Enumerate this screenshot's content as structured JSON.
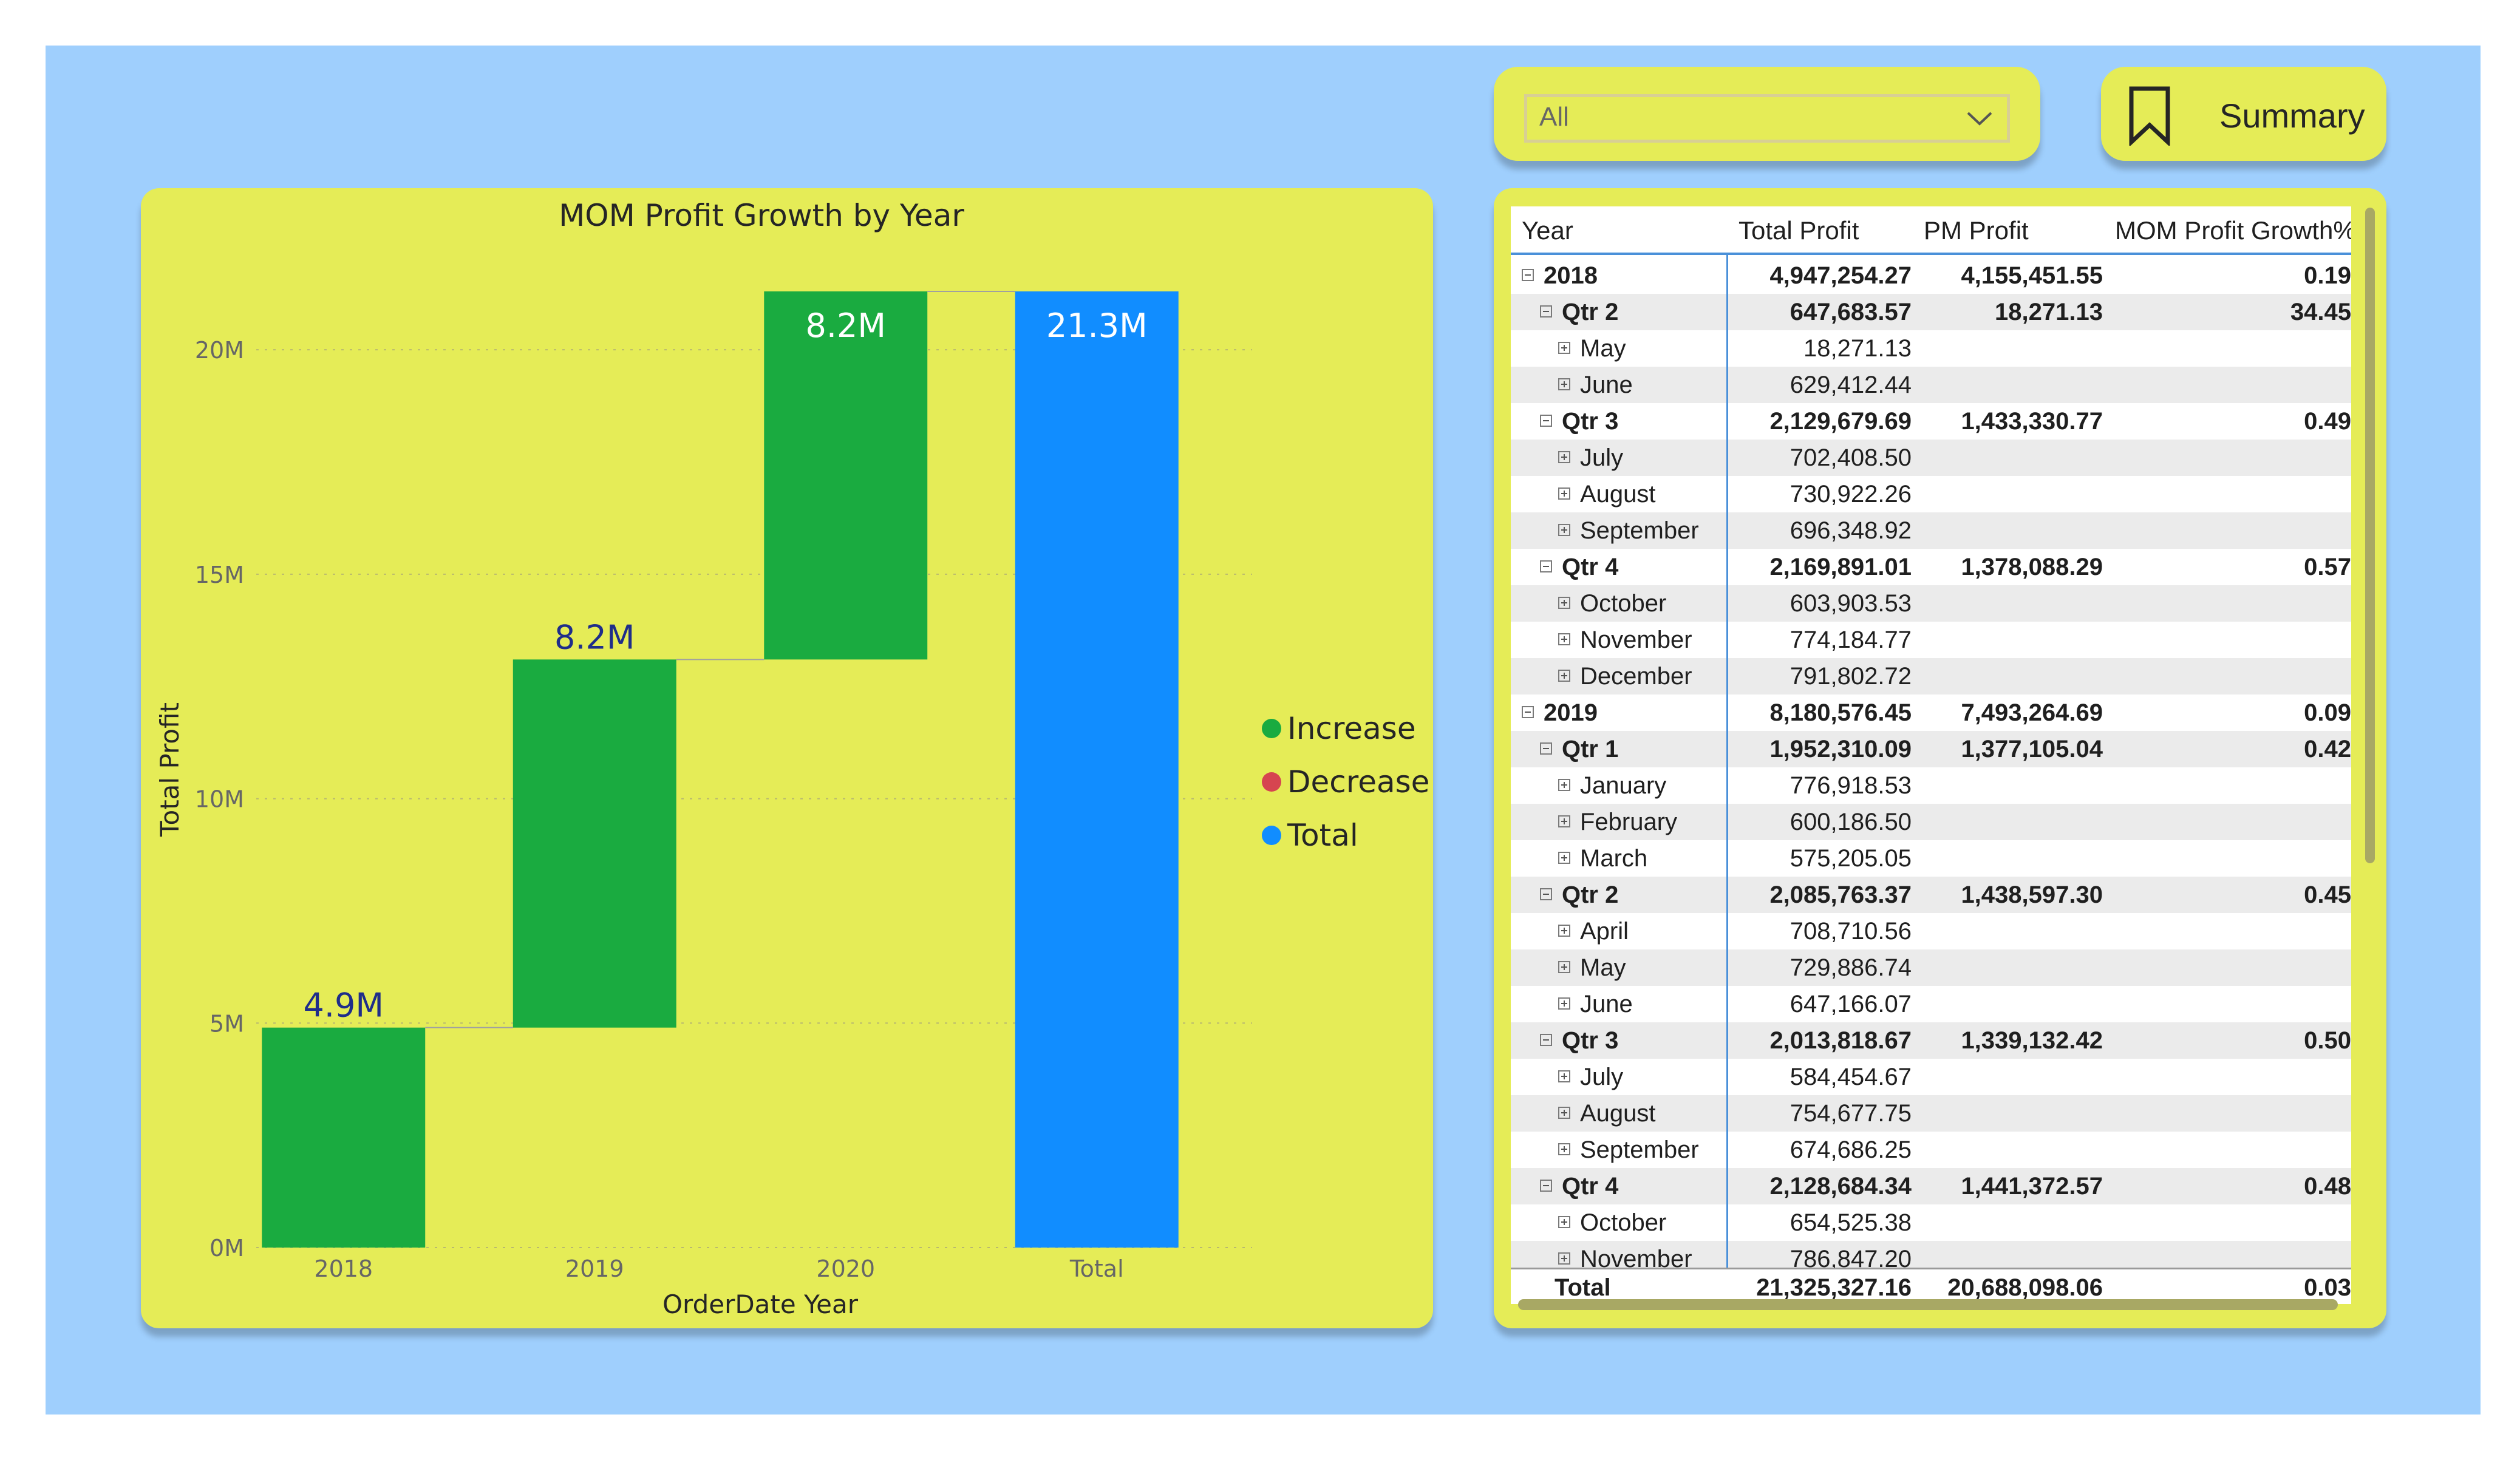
{
  "slicer": {
    "value": "All"
  },
  "summary_button": {
    "label": "Summary"
  },
  "chart_data": {
    "type": "waterfall",
    "title": "MOM Profit Growth by Year",
    "xlabel": "OrderDate Year",
    "ylabel": "Total Profit",
    "categories": [
      "2018",
      "2019",
      "2020",
      "Total"
    ],
    "values": [
      4.9,
      8.2,
      8.2,
      21.3
    ],
    "kinds": [
      "increase",
      "increase",
      "increase",
      "total"
    ],
    "data_labels": [
      "4.9M",
      "8.2M",
      "8.2M",
      "21.3M"
    ],
    "units": "M",
    "ylim": [
      0,
      21.3
    ],
    "yticks": [
      0,
      5,
      10,
      15,
      20
    ],
    "ytick_labels": [
      "0M",
      "5M",
      "10M",
      "15M",
      "20M"
    ],
    "grid": true,
    "legend": {
      "position": "right",
      "entries": [
        {
          "label": "Increase",
          "color": "#1aab40"
        },
        {
          "label": "Decrease",
          "color": "#d64550"
        },
        {
          "label": "Total",
          "color": "#118dff"
        }
      ]
    },
    "colors": {
      "increase": "#1aab40",
      "decrease": "#d64550",
      "total": "#118dff",
      "label": "#1f2d8a"
    }
  },
  "table": {
    "headers": [
      "Year",
      "Total Profit",
      "PM Profit",
      "MOM Profit Growth%"
    ],
    "rows": [
      {
        "level": 0,
        "icon": "minus",
        "label": "2018",
        "total": "4,947,254.27",
        "pm": "4,155,451.55",
        "growth": "0.19",
        "bold": true
      },
      {
        "level": 1,
        "icon": "minus",
        "label": "Qtr 2",
        "total": "647,683.57",
        "pm": "18,271.13",
        "growth": "34.45",
        "bold": true
      },
      {
        "level": 2,
        "icon": "plus",
        "label": "May",
        "total": "18,271.13",
        "pm": "",
        "growth": ""
      },
      {
        "level": 2,
        "icon": "plus",
        "label": "June",
        "total": "629,412.44",
        "pm": "",
        "growth": ""
      },
      {
        "level": 1,
        "icon": "minus",
        "label": "Qtr 3",
        "total": "2,129,679.69",
        "pm": "1,433,330.77",
        "growth": "0.49",
        "bold": true
      },
      {
        "level": 2,
        "icon": "plus",
        "label": "July",
        "total": "702,408.50",
        "pm": "",
        "growth": ""
      },
      {
        "level": 2,
        "icon": "plus",
        "label": "August",
        "total": "730,922.26",
        "pm": "",
        "growth": ""
      },
      {
        "level": 2,
        "icon": "plus",
        "label": "September",
        "total": "696,348.92",
        "pm": "",
        "growth": ""
      },
      {
        "level": 1,
        "icon": "minus",
        "label": "Qtr 4",
        "total": "2,169,891.01",
        "pm": "1,378,088.29",
        "growth": "0.57",
        "bold": true
      },
      {
        "level": 2,
        "icon": "plus",
        "label": "October",
        "total": "603,903.53",
        "pm": "",
        "growth": ""
      },
      {
        "level": 2,
        "icon": "plus",
        "label": "November",
        "total": "774,184.77",
        "pm": "",
        "growth": ""
      },
      {
        "level": 2,
        "icon": "plus",
        "label": "December",
        "total": "791,802.72",
        "pm": "",
        "growth": ""
      },
      {
        "level": 0,
        "icon": "minus",
        "label": "2019",
        "total": "8,180,576.45",
        "pm": "7,493,264.69",
        "growth": "0.09",
        "bold": true
      },
      {
        "level": 1,
        "icon": "minus",
        "label": "Qtr 1",
        "total": "1,952,310.09",
        "pm": "1,377,105.04",
        "growth": "0.42",
        "bold": true
      },
      {
        "level": 2,
        "icon": "plus",
        "label": "January",
        "total": "776,918.53",
        "pm": "",
        "growth": ""
      },
      {
        "level": 2,
        "icon": "plus",
        "label": "February",
        "total": "600,186.50",
        "pm": "",
        "growth": ""
      },
      {
        "level": 2,
        "icon": "plus",
        "label": "March",
        "total": "575,205.05",
        "pm": "",
        "growth": ""
      },
      {
        "level": 1,
        "icon": "minus",
        "label": "Qtr 2",
        "total": "2,085,763.37",
        "pm": "1,438,597.30",
        "growth": "0.45",
        "bold": true
      },
      {
        "level": 2,
        "icon": "plus",
        "label": "April",
        "total": "708,710.56",
        "pm": "",
        "growth": ""
      },
      {
        "level": 2,
        "icon": "plus",
        "label": "May",
        "total": "729,886.74",
        "pm": "",
        "growth": ""
      },
      {
        "level": 2,
        "icon": "plus",
        "label": "June",
        "total": "647,166.07",
        "pm": "",
        "growth": ""
      },
      {
        "level": 1,
        "icon": "minus",
        "label": "Qtr 3",
        "total": "2,013,818.67",
        "pm": "1,339,132.42",
        "growth": "0.50",
        "bold": true
      },
      {
        "level": 2,
        "icon": "plus",
        "label": "July",
        "total": "584,454.67",
        "pm": "",
        "growth": ""
      },
      {
        "level": 2,
        "icon": "plus",
        "label": "August",
        "total": "754,677.75",
        "pm": "",
        "growth": ""
      },
      {
        "level": 2,
        "icon": "plus",
        "label": "September",
        "total": "674,686.25",
        "pm": "",
        "growth": ""
      },
      {
        "level": 1,
        "icon": "minus",
        "label": "Qtr 4",
        "total": "2,128,684.34",
        "pm": "1,441,372.57",
        "growth": "0.48",
        "bold": true
      },
      {
        "level": 2,
        "icon": "plus",
        "label": "October",
        "total": "654,525.38",
        "pm": "",
        "growth": ""
      },
      {
        "level": 2,
        "icon": "plus",
        "label": "November",
        "total": "786,847.20",
        "pm": "",
        "growth": ""
      }
    ],
    "total_row": {
      "label": "Total",
      "total": "21,325,327.16",
      "pm": "20,688,098.06",
      "growth": "0.03"
    }
  }
}
